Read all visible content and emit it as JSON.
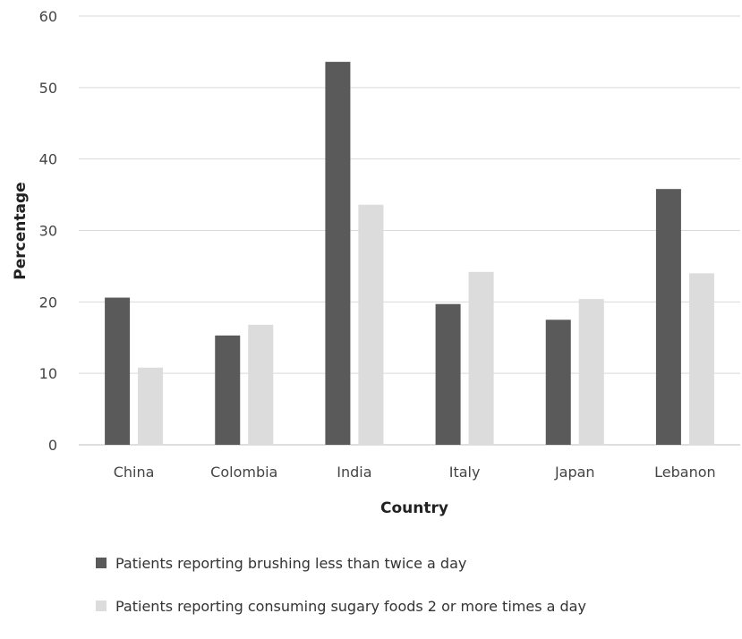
{
  "chart_data": {
    "type": "bar",
    "xlabel": "Country",
    "ylabel": "Percentage",
    "ylim": [
      0,
      60
    ],
    "yticks": [
      0,
      10,
      20,
      30,
      40,
      50,
      60
    ],
    "grid": true,
    "legend_position": "bottom",
    "categories": [
      "China",
      "Colombia",
      "India",
      "Italy",
      "Japan",
      "Lebanon"
    ],
    "series": [
      {
        "name": "Patients reporting brushing less than twice a day",
        "color": "#5a5a5a",
        "values": [
          20.6,
          15.3,
          53.6,
          19.7,
          17.5,
          35.8
        ]
      },
      {
        "name": "Patients reporting consuming sugary foods 2 or more times a day",
        "color": "#dcdcdc",
        "values": [
          10.8,
          16.8,
          33.6,
          24.2,
          20.4,
          24.0
        ]
      }
    ]
  }
}
